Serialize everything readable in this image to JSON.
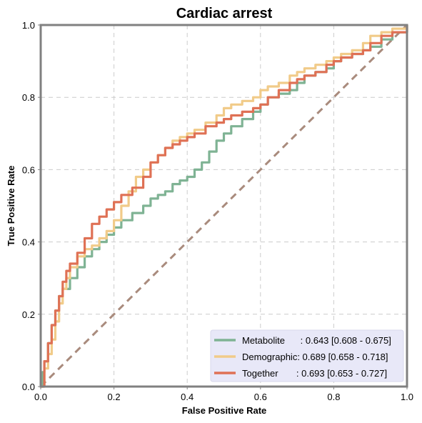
{
  "chart_data": {
    "type": "line",
    "title": "Cardiac arrest",
    "xlabel": "False Positive Rate",
    "ylabel": "True Positive Rate",
    "xlim": [
      0,
      1
    ],
    "ylim": [
      0,
      1
    ],
    "x_ticks": [
      "0.0",
      "0.2",
      "0.4",
      "0.6",
      "0.8",
      "1.0"
    ],
    "y_ticks": [
      "0.0",
      "0.2",
      "0.4",
      "0.6",
      "0.8",
      "1.0"
    ],
    "grid": true,
    "legend_position": "bottom-right",
    "series": [
      {
        "name": "Metabolite",
        "legend_label": "Metabolite      : 0.643 [0.608 - 0.675]",
        "color": "#7fb394",
        "x": [
          0,
          0.005,
          0.01,
          0.02,
          0.03,
          0.04,
          0.05,
          0.06,
          0.08,
          0.1,
          0.12,
          0.14,
          0.16,
          0.18,
          0.2,
          0.22,
          0.25,
          0.28,
          0.3,
          0.32,
          0.34,
          0.36,
          0.38,
          0.4,
          0.42,
          0.44,
          0.46,
          0.48,
          0.5,
          0.52,
          0.55,
          0.58,
          0.6,
          0.62,
          0.65,
          0.68,
          0.7,
          0.72,
          0.75,
          0.78,
          0.8,
          0.82,
          0.85,
          0.88,
          0.9,
          0.93,
          0.96,
          1.0
        ],
        "y": [
          0,
          0.04,
          0.07,
          0.12,
          0.17,
          0.21,
          0.25,
          0.27,
          0.3,
          0.33,
          0.36,
          0.38,
          0.4,
          0.42,
          0.44,
          0.46,
          0.48,
          0.5,
          0.52,
          0.53,
          0.54,
          0.56,
          0.57,
          0.58,
          0.6,
          0.62,
          0.65,
          0.68,
          0.7,
          0.72,
          0.74,
          0.76,
          0.78,
          0.8,
          0.81,
          0.82,
          0.84,
          0.86,
          0.87,
          0.88,
          0.9,
          0.91,
          0.92,
          0.93,
          0.94,
          0.96,
          0.98,
          1.0
        ]
      },
      {
        "name": "Demographic",
        "legend_label": "Demographic: 0.689 [0.658 - 0.718]",
        "color": "#f1cb89",
        "x": [
          0,
          0.01,
          0.02,
          0.03,
          0.04,
          0.05,
          0.06,
          0.07,
          0.08,
          0.1,
          0.12,
          0.14,
          0.16,
          0.18,
          0.2,
          0.22,
          0.24,
          0.26,
          0.28,
          0.3,
          0.32,
          0.34,
          0.36,
          0.38,
          0.4,
          0.42,
          0.45,
          0.48,
          0.5,
          0.52,
          0.55,
          0.58,
          0.6,
          0.62,
          0.65,
          0.68,
          0.7,
          0.72,
          0.75,
          0.78,
          0.8,
          0.82,
          0.85,
          0.88,
          0.9,
          0.93,
          0.96,
          1.0
        ],
        "y": [
          0,
          0.05,
          0.09,
          0.13,
          0.18,
          0.23,
          0.27,
          0.3,
          0.33,
          0.36,
          0.38,
          0.39,
          0.41,
          0.43,
          0.46,
          0.5,
          0.54,
          0.58,
          0.6,
          0.62,
          0.64,
          0.66,
          0.68,
          0.69,
          0.7,
          0.71,
          0.73,
          0.75,
          0.77,
          0.78,
          0.79,
          0.8,
          0.82,
          0.83,
          0.84,
          0.86,
          0.87,
          0.88,
          0.89,
          0.9,
          0.91,
          0.92,
          0.93,
          0.95,
          0.97,
          0.98,
          0.99,
          1.0
        ]
      },
      {
        "name": "Together",
        "legend_label": "Together       : 0.693 [0.653 - 0.727]",
        "color": "#df7155",
        "x": [
          0,
          0.01,
          0.02,
          0.03,
          0.04,
          0.05,
          0.06,
          0.07,
          0.08,
          0.1,
          0.12,
          0.14,
          0.16,
          0.18,
          0.2,
          0.22,
          0.25,
          0.28,
          0.3,
          0.32,
          0.34,
          0.36,
          0.38,
          0.4,
          0.42,
          0.45,
          0.48,
          0.5,
          0.52,
          0.55,
          0.58,
          0.6,
          0.62,
          0.65,
          0.68,
          0.7,
          0.72,
          0.75,
          0.78,
          0.8,
          0.82,
          0.85,
          0.88,
          0.9,
          0.93,
          0.96,
          1.0
        ],
        "y": [
          0,
          0.07,
          0.12,
          0.17,
          0.21,
          0.25,
          0.29,
          0.32,
          0.34,
          0.37,
          0.41,
          0.45,
          0.47,
          0.49,
          0.51,
          0.53,
          0.55,
          0.58,
          0.62,
          0.64,
          0.66,
          0.67,
          0.68,
          0.69,
          0.7,
          0.72,
          0.73,
          0.74,
          0.75,
          0.76,
          0.77,
          0.78,
          0.8,
          0.82,
          0.84,
          0.85,
          0.86,
          0.87,
          0.89,
          0.9,
          0.91,
          0.92,
          0.93,
          0.95,
          0.97,
          0.98,
          1.0
        ]
      }
    ],
    "reference_line": {
      "color": "#a98b7d",
      "style": "dashed",
      "x": [
        0,
        1
      ],
      "y": [
        0,
        1
      ]
    }
  }
}
